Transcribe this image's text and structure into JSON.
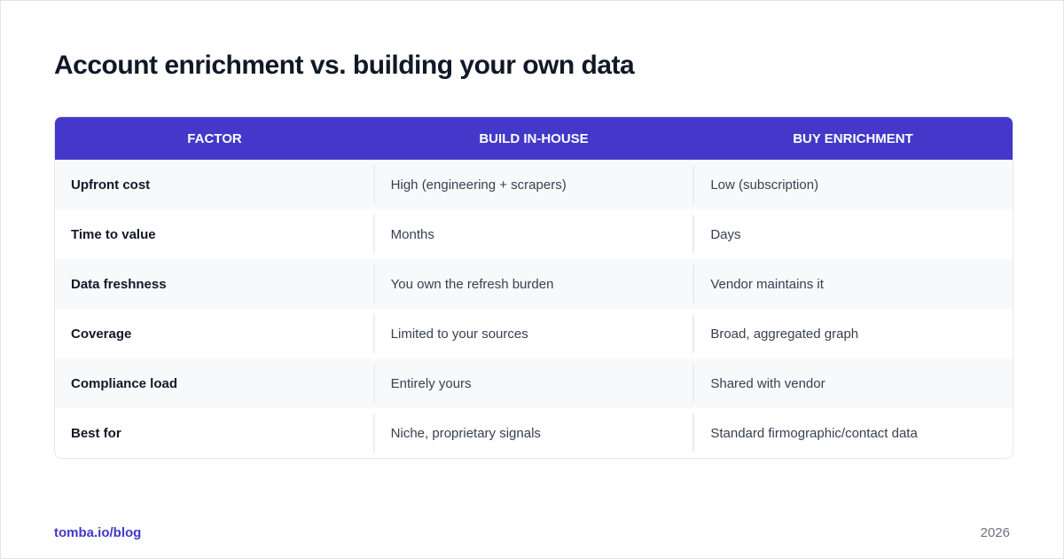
{
  "header": {
    "title": "Account enrichment vs. building your own data"
  },
  "table": {
    "columns": [
      "FACTOR",
      "BUILD IN-HOUSE",
      "BUY ENRICHMENT"
    ],
    "rows": [
      [
        "Upfront cost",
        "High (engineering + scrapers)",
        "Low (subscription)"
      ],
      [
        "Time to value",
        "Months",
        "Days"
      ],
      [
        "Data freshness",
        "You own the refresh burden",
        "Vendor maintains it"
      ],
      [
        "Coverage",
        "Limited to your sources",
        "Broad, aggregated graph"
      ],
      [
        "Compliance load",
        "Entirely yours",
        "Shared with vendor"
      ],
      [
        "Best for",
        "Niche, proprietary signals",
        "Standard firmographic/contact data"
      ]
    ]
  },
  "footer": {
    "link": "tomba.io/blog",
    "year": "2026"
  }
}
